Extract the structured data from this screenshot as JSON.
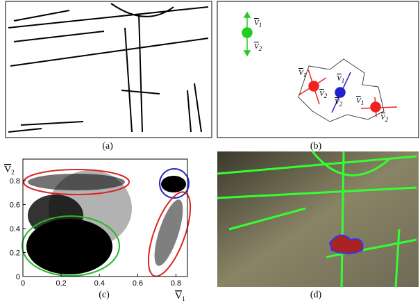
{
  "panels": {
    "a": {
      "caption": "(a)"
    },
    "b": {
      "caption": "(b)",
      "vector_labels": [
        {
          "symbol": "V",
          "subscript": "1"
        },
        {
          "symbol": "V",
          "subscript": "2"
        },
        {
          "symbol": "V",
          "subscript": "1"
        },
        {
          "symbol": "V",
          "subscript": "2"
        },
        {
          "symbol": "V",
          "subscript": "1"
        },
        {
          "symbol": "V",
          "subscript": "2"
        },
        {
          "symbol": "V",
          "subscript": "1"
        },
        {
          "symbol": "V",
          "subscript": "2"
        }
      ]
    },
    "c": {
      "caption": "(c)",
      "x_label": {
        "symbol": "V",
        "subscript": "1"
      },
      "y_label": {
        "symbol": "V",
        "subscript": "2"
      },
      "xlim": [
        0,
        0.86
      ],
      "ylim": [
        0,
        0.98
      ],
      "xticks": [
        0,
        0.2,
        0.4,
        0.6,
        0.8
      ],
      "yticks": [
        0,
        0.2,
        0.4,
        0.6,
        0.8
      ]
    },
    "d": {
      "caption": "(d)"
    }
  }
}
